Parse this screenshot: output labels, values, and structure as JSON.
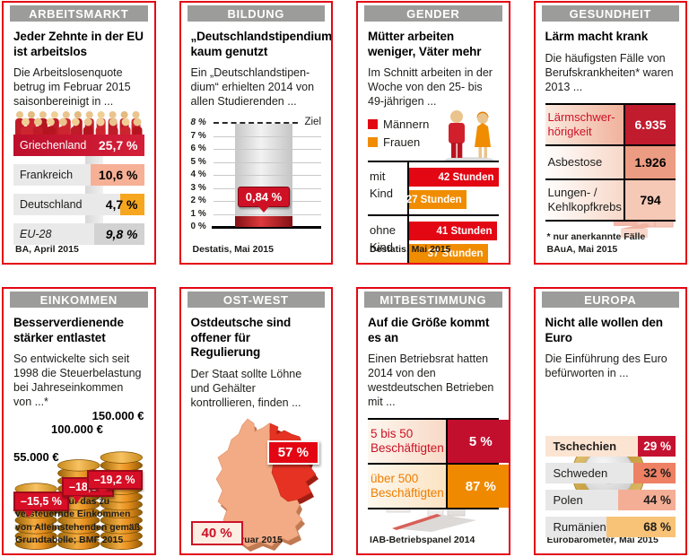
{
  "colors": {
    "card_border_red": "#e30613",
    "header_gray": "#9c9c9b",
    "crimson": "#c31230",
    "bright_red": "#e30613",
    "orange": "#f08c00",
    "salmon": "#f0907a",
    "light_pink": "#fce4d3",
    "bar_gray": "#e9e9e9"
  },
  "cards": {
    "arbeitsmarkt": {
      "header": "ARBEITSMARKT",
      "title": "Jeder Zehnte in der EU ist arbeitslos",
      "intro": "Die Arbeitslosenquote betrug im Februar 2015 saisonbereinigt in ...",
      "source": "BA, April 2015",
      "rows": [
        {
          "label": "Griechenland",
          "value": "25,7 %",
          "bar_pct": 100
        },
        {
          "label": "Frankreich",
          "value": "10,6 %",
          "bar_pct": 41
        },
        {
          "label": "Deutschland",
          "value": "4,7 %",
          "bar_pct": 18
        },
        {
          "label": "EU-28",
          "value": "9,8 %",
          "bar_pct": 38
        }
      ]
    },
    "bildung": {
      "header": "BILDUNG",
      "title": "„Deutschlandstipendium“ kaum genutzt",
      "intro": "Ein „Deutschlandstipen­dium“ erhielten 2014 von allen Studierenden ...",
      "source": "Destatis, Mai 2015",
      "ticks": [
        "8 %",
        "7 %",
        "6 %",
        "5 %",
        "4 %",
        "3 %",
        "2 %",
        "1 %",
        "0 %"
      ],
      "target_label": "Ziel",
      "value_label": "0,84 %",
      "bar_pct_of_axis": 10.5
    },
    "gender": {
      "header": "GENDER",
      "title": "Mütter arbeiten weniger, Väter mehr",
      "intro": "Im Schnitt arbeiten in der Woche von den 25- bis 49-jährigen ...",
      "source": "Destatis, Mai 2015",
      "legend": [
        {
          "label": "Männern",
          "color": "#e30613"
        },
        {
          "label": "Frauen",
          "color": "#f08c00"
        }
      ],
      "groups": [
        {
          "label": "mit Kind",
          "bars": [
            {
              "value": "42 Stunden",
              "pct": 100
            },
            {
              "value": "27 Stunden",
              "pct": 64
            }
          ]
        },
        {
          "label": "ohne Kind",
          "bars": [
            {
              "value": "41 Stunden",
              "pct": 98
            },
            {
              "value": "37 Stunden",
              "pct": 88
            }
          ]
        }
      ]
    },
    "gesundheit": {
      "header": "GESUNDHEIT",
      "title": "Lärm macht krank",
      "intro": "Die häufigsten Fälle von Berufskrankheiten* waren 2013 ...",
      "footnote": "* nur anerkannte Fälle",
      "source": "BAuA, Mai 2015",
      "rows": [
        {
          "label": "Lärmschwer­hörigkeit",
          "value": "6.935"
        },
        {
          "label": "Asbestose",
          "value": "1.926"
        },
        {
          "label": "Lungen- / Kehlkopfkrebs",
          "value": "794"
        }
      ]
    },
    "einkommen": {
      "header": "EINKOMMEN",
      "title": "Besserverdienende stärker entlastet",
      "intro": "So entwickelte sich seit 1998 die Steuerbelastung bei Jahreseinkommen von ...*",
      "footnote": "* Bezogen auf das zu versteuernde Ein­kommen von Alleinstehenden gemäß Grundtabelle; BMF 2015",
      "stacks": [
        {
          "amount": "55.000 €",
          "change": "–15,5 %"
        },
        {
          "amount": "100.000 €",
          "change": "–18,3%"
        },
        {
          "amount": "150.000 €",
          "change": "–19,2 %"
        }
      ]
    },
    "ostwest": {
      "header": "OST-WEST",
      "title": "Ostdeutsche sind offener für Regulierung",
      "intro": "Der Staat sollte Löhne und Gehälter kontrollieren, finden ...",
      "source": "BMWI, Februar 2015",
      "east_value": "57 %",
      "west_value": "40 %"
    },
    "mitbestimmung": {
      "header": "MITBESTIMMUNG",
      "title": "Auf die Größe kommt es an",
      "intro": "Einen Betriebsrat hatten 2014 von den westdeutschen Betrieben mit ...",
      "source": "IAB-Betriebspanel 2014",
      "rows": [
        {
          "label": "5 bis 50 Beschäftigten",
          "value": "5 %"
        },
        {
          "label": "über 500 Beschäftigten",
          "value": "87 %"
        }
      ]
    },
    "europa": {
      "header": "EUROPA",
      "title": "Nicht alle wollen den Euro",
      "intro": "Die Einführung des Euro befürworten in ...",
      "source": "Eurobarometer, Mai 2015",
      "rows": [
        {
          "label": "Tschechien",
          "value": "29 %",
          "pct": 29
        },
        {
          "label": "Schweden",
          "value": "32 %",
          "pct": 32
        },
        {
          "label": "Polen",
          "value": "44 %",
          "pct": 44
        },
        {
          "label": "Rumänien",
          "value": "68 %",
          "pct": 68
        }
      ]
    }
  },
  "chart_data": [
    {
      "id": "arbeitsmarkt",
      "type": "bar",
      "title": "Jeder Zehnte in der EU ist arbeitslos",
      "categories": [
        "Griechenland",
        "Frankreich",
        "Deutschland",
        "EU-28"
      ],
      "values": [
        25.7,
        10.6,
        4.7,
        9.8
      ],
      "unit": "%",
      "source": "BA, April 2015"
    },
    {
      "id": "bildung",
      "type": "bar",
      "title": "„Deutschlandstipendium“ kaum genutzt",
      "categories": [
        "Deutschlandstipendium 2014"
      ],
      "values": [
        0.84
      ],
      "target": 8,
      "target_label": "Ziel",
      "ylim": [
        0,
        8
      ],
      "unit": "%",
      "grid": true,
      "source": "Destatis, Mai 2015"
    },
    {
      "id": "gender",
      "type": "bar",
      "title": "Mütter arbeiten weniger, Väter mehr",
      "categories": [
        "mit Kind",
        "ohne Kind"
      ],
      "series": [
        {
          "name": "Männern",
          "values": [
            42,
            41
          ]
        },
        {
          "name": "Frauen",
          "values": [
            27,
            37
          ]
        }
      ],
      "unit": "Stunden",
      "legend_position": "top-left",
      "source": "Destatis, Mai 2015"
    },
    {
      "id": "gesundheit",
      "type": "table",
      "title": "Lärm macht krank",
      "categories": [
        "Lärmschwerhörigkeit",
        "Asbestose",
        "Lungen- / Kehlkopfkrebs"
      ],
      "values": [
        6935,
        1926,
        794
      ],
      "unit": "Fälle 2013",
      "source": "BAuA, Mai 2015"
    },
    {
      "id": "einkommen",
      "type": "bar",
      "title": "Besserverdienende stärker entlastet",
      "categories": [
        "55.000 €",
        "100.000 €",
        "150.000 €"
      ],
      "values": [
        -15.5,
        -18.3,
        -19.2
      ],
      "unit": "% Steuerbelastung seit 1998",
      "source": "BMF 2015"
    },
    {
      "id": "ostwest",
      "type": "map",
      "title": "Ostdeutsche sind offener für Regulierung",
      "categories": [
        "Westdeutschland",
        "Ostdeutschland"
      ],
      "values": [
        40,
        57
      ],
      "unit": "%",
      "source": "BMWI, Februar 2015"
    },
    {
      "id": "mitbestimmung",
      "type": "bar",
      "title": "Auf die Größe kommt es an",
      "categories": [
        "5 bis 50 Beschäftigten",
        "über 500 Beschäftigten"
      ],
      "values": [
        5,
        87
      ],
      "unit": "%",
      "source": "IAB-Betriebspanel 2014"
    },
    {
      "id": "europa",
      "type": "bar",
      "title": "Nicht alle wollen den Euro",
      "categories": [
        "Tschechien",
        "Schweden",
        "Polen",
        "Rumänien"
      ],
      "values": [
        29,
        32,
        44,
        68
      ],
      "unit": "%",
      "source": "Eurobarometer, Mai 2015"
    }
  ]
}
